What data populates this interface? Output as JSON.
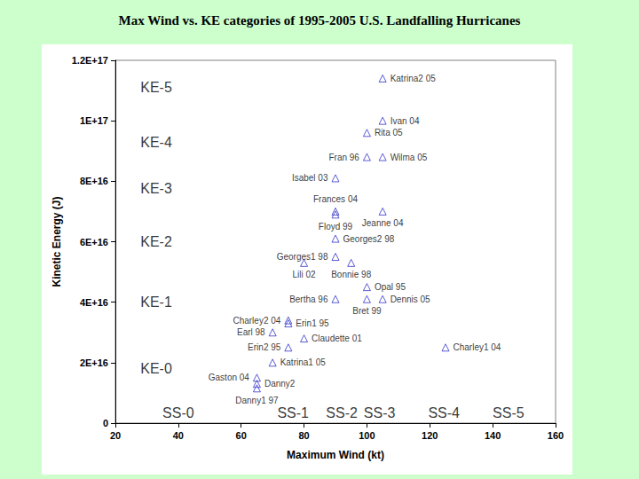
{
  "chart_data": {
    "type": "scatter",
    "title": "Max Wind vs. KE categories of 1995-2005 U.S. Landfalling Hurricanes",
    "x_label": "Maximum Wind (kt)",
    "y_label": "Kinetic Energy (J)",
    "xlim": [
      20,
      160
    ],
    "xticks": [
      20,
      40,
      60,
      80,
      100,
      120,
      140,
      160
    ],
    "ylim": [
      0,
      1.2e+17
    ],
    "yticks": [
      0,
      {
        "value": 2e+16,
        "label": "2E+16"
      },
      {
        "value": 4e+16,
        "label": "4E+16"
      },
      {
        "value": 6e+16,
        "label": "6E+16"
      },
      {
        "value": 8e+16,
        "label": "8E+16"
      },
      {
        "value": 1e+17,
        "label": "1E+17"
      },
      {
        "value": 1.2e+17,
        "label": "1.2E+17"
      }
    ],
    "grid": false,
    "marker": "triangle",
    "color": "#3333cc",
    "labels": [
      "Katrina2 05",
      "Ivan 04",
      "Rita 05",
      "Fran 96",
      "Wilma 05",
      "Isabel 03",
      "Frances 04",
      "Floyd 99",
      "Jeanne 04",
      "Georges2 98",
      "Georges1 98",
      "Bonnie 98",
      "Lili 02",
      "Opal 95",
      "Dennis 05",
      "Bret 99",
      "Bertha 96",
      "Charley2 04",
      "Erin1 95",
      "Earl 98",
      "Claudette 01",
      "Erin2 95",
      "Charley1 04",
      "Katrina1 05",
      "Gaston 04",
      "Danny2",
      "Danny1 97"
    ],
    "x": [
      105,
      105,
      100,
      100,
      105,
      90,
      90,
      90,
      105,
      90,
      90,
      95,
      80,
      100,
      105,
      100,
      90,
      75,
      75,
      70,
      80,
      75,
      125,
      70,
      65,
      65,
      65
    ],
    "values": [
      1.14e+17,
      1e+17,
      9.6e+16,
      8.8e+16,
      8.8e+16,
      8.1e+16,
      7e+16,
      6.9e+16,
      7e+16,
      6.1e+16,
      5.5e+16,
      5.3e+16,
      5.3e+16,
      4.5e+16,
      4.1e+16,
      4.1e+16,
      4.1e+16,
      3.4e+16,
      3.3e+16,
      3e+16,
      2.8e+16,
      2.5e+16,
      2.5e+16,
      2e+16,
      1.5e+16,
      1.3e+16,
      1.15e+16
    ],
    "annotations": [
      {
        "text": "KE-5",
        "x": 33,
        "y": 1.11e+17
      },
      {
        "text": "KE-4",
        "x": 33,
        "y": 9.3e+16
      },
      {
        "text": "KE-3",
        "x": 33,
        "y": 7.75e+16
      },
      {
        "text": "KE-2",
        "x": 33,
        "y": 6e+16
      },
      {
        "text": "KE-1",
        "x": 33,
        "y": 4e+16
      },
      {
        "text": "KE-0",
        "x": 33,
        "y": 1.8e+16
      },
      {
        "text": "SS-0",
        "x": 40,
        "y": 3500000000000000.0
      },
      {
        "text": "SS-1",
        "x": 76.5,
        "y": 3500000000000000.0
      },
      {
        "text": "SS-2",
        "x": 92,
        "y": 3500000000000000.0
      },
      {
        "text": "SS-3",
        "x": 104,
        "y": 3500000000000000.0
      },
      {
        "text": "SS-4",
        "x": 124.5,
        "y": 3500000000000000.0
      },
      {
        "text": "SS-5",
        "x": 145,
        "y": 3500000000000000.0
      }
    ]
  }
}
